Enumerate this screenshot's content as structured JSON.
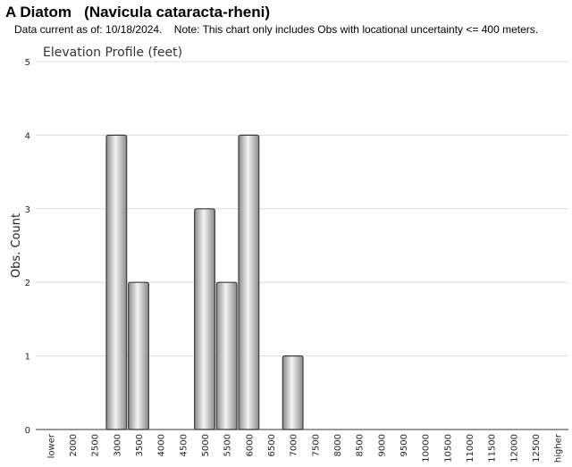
{
  "header": {
    "title": "A Diatom   (Navicula cataracta-rheni)",
    "subtitle": "Data current as of: 10/18/2024.    Note: This chart only includes Obs with locational uncertainty <= 400 meters."
  },
  "chart_data": {
    "type": "bar",
    "title": "Elevation Profile (feet)",
    "xlabel": "",
    "ylabel": "Obs. Count",
    "categories": [
      "lower",
      "2000",
      "2500",
      "3000",
      "3500",
      "4000",
      "4500",
      "5000",
      "5500",
      "6000",
      "6500",
      "7000",
      "7500",
      "8000",
      "8500",
      "9000",
      "9500",
      "10000",
      "10500",
      "11000",
      "11500",
      "12000",
      "12500",
      "higher"
    ],
    "values": [
      0,
      0,
      0,
      4,
      2,
      0,
      0,
      3,
      2,
      4,
      0,
      1,
      0,
      0,
      0,
      0,
      0,
      0,
      0,
      0,
      0,
      0,
      0,
      0
    ],
    "ylim": [
      0,
      5
    ],
    "yticks": [
      "0",
      "1",
      "2",
      "3",
      "4",
      "5"
    ],
    "grid": true,
    "legend": "none",
    "colors": {
      "bar_light": "#f4f4f4",
      "bar_dark": "#8a8a8a",
      "bar_edge": "#3c3c3c"
    }
  }
}
